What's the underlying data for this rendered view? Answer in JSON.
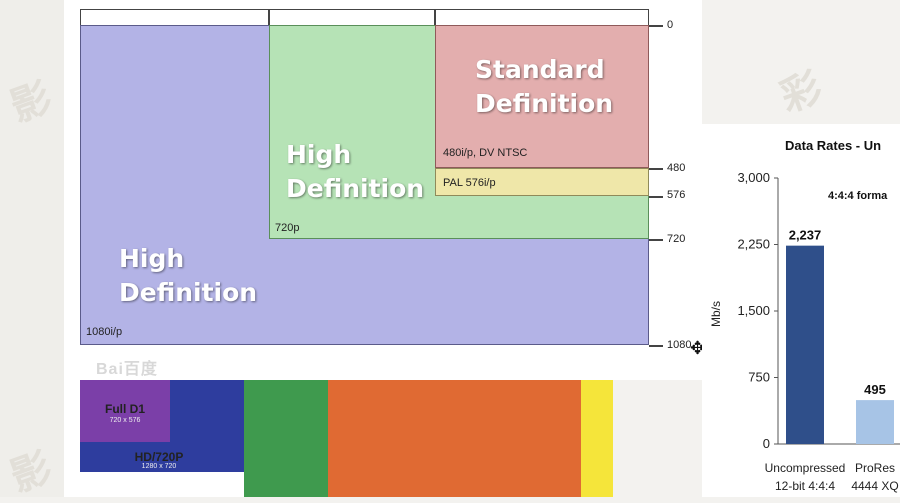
{
  "resolution_diagram": {
    "regions": [
      {
        "id": "hd1080",
        "title": "High\nDefinition",
        "format": "1080i/p"
      },
      {
        "id": "hd720",
        "title": "High\nDefinition",
        "format": "720p"
      },
      {
        "id": "sd",
        "title": "Standard\nDefinition",
        "format": "480i/p, DV NTSC"
      },
      {
        "id": "pal",
        "title": "",
        "format": "PAL 576i/p"
      }
    ],
    "scale_labels": [
      "0",
      "480",
      "576",
      "720",
      "1080"
    ],
    "colors": {
      "hd1080": "#b3b3e6",
      "hd720": "#b6e3b6",
      "sd": "#e3aeae",
      "pal": "#efe7a9"
    },
    "watermark": "Bai百度"
  },
  "color_bars": [
    {
      "name": "Full D1",
      "sub": "720 x 576",
      "color": "#7b3fa8"
    },
    {
      "name": "HD/720P",
      "sub": "1280 x 720",
      "color": "#2e3d9e"
    },
    {
      "name": "",
      "sub": "",
      "color": "#3f9a4e"
    },
    {
      "name": "",
      "sub": "",
      "color": "#e06a33"
    },
    {
      "name": "",
      "sub": "",
      "color": "#f5e53a"
    }
  ],
  "chart_data": {
    "type": "bar",
    "title": "Data Rates - Un",
    "subtitle": "4:4:4 forma",
    "ylabel": "Mb/s",
    "ylim": [
      0,
      3000
    ],
    "yticks": [
      "0",
      "750",
      "1,500",
      "2,250",
      "3,000"
    ],
    "categories": [
      {
        "line1": "Uncompressed",
        "line2": "12-bit 4:4:4"
      },
      {
        "line1": "ProRes",
        "line2": "4444 XQ"
      }
    ],
    "values": [
      2237,
      495
    ],
    "value_labels": [
      "2,237",
      "495"
    ],
    "colors": [
      "#2f4f8a",
      "#a7c4e6"
    ]
  }
}
